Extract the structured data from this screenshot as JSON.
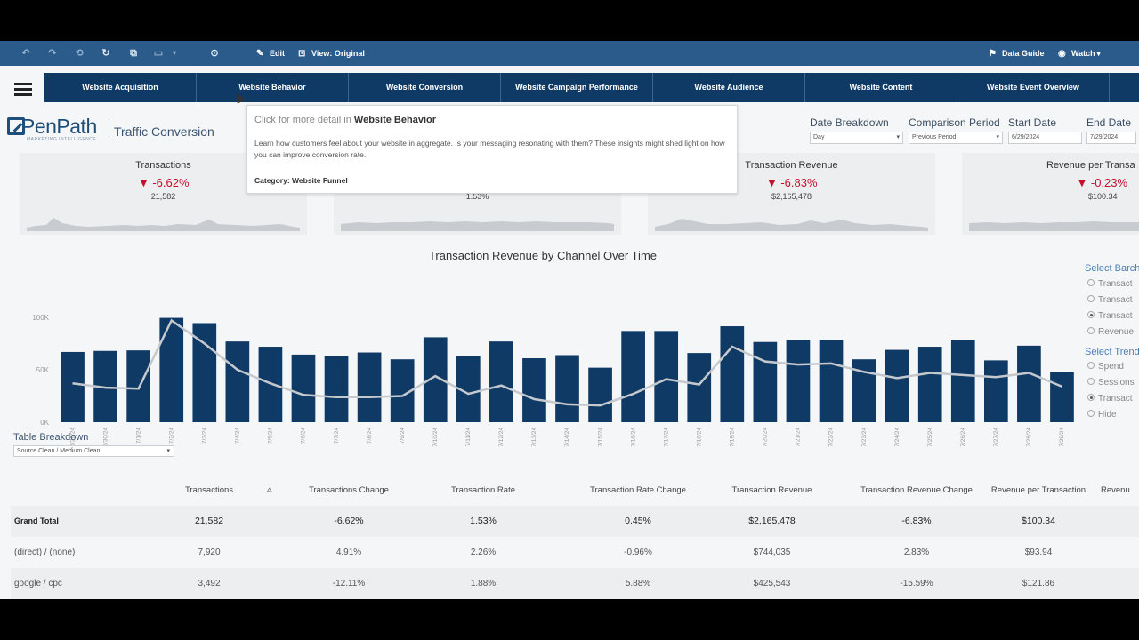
{
  "toolbar": {
    "edit_label": "Edit",
    "view_label": "View: Original",
    "data_guide_label": "Data Guide",
    "watch_label": "Watch"
  },
  "nav": {
    "tabs": [
      "Website Acquisition",
      "Website Behavior",
      "Website Conversion",
      "Website Campaign Performance",
      "Website Audience",
      "Website Content",
      "Website Event Overview"
    ]
  },
  "header": {
    "logo_name": "PenPath",
    "logo_tagline": "MARKETING INTELLIGENCE",
    "page_title": "Traffic Conversion"
  },
  "filters": [
    {
      "label": "Date Breakdown",
      "value": "Day"
    },
    {
      "label": "Comparison Period",
      "value": "Previous Period"
    },
    {
      "label": "Start Date",
      "value": "6/29/2024"
    },
    {
      "label": "End Date",
      "value": "7/29/2024"
    }
  ],
  "kpis": [
    {
      "title": "Transactions",
      "change": "-6.62%",
      "value": "21,582"
    },
    {
      "title": "",
      "change": "",
      "value": "1.53%"
    },
    {
      "title": "Transaction Revenue",
      "change": "-6.83%",
      "value": "$2,165,478"
    },
    {
      "title": "Revenue per Transa",
      "change": "-0.23%",
      "value": "$100.34"
    }
  ],
  "tooltip": {
    "prefix": "Click for more detail in",
    "target": "Website Behavior",
    "body": "Learn how customers feel about your website in aggregate. Is your messaging resonating with them? These insights might shed light on how you can improve conversion rate.",
    "category": "Category: Website Funnel"
  },
  "chart_data": {
    "type": "bar",
    "title": "Transaction Revenue by Channel Over Time",
    "xlabel": "",
    "ylabel": "",
    "ylim": [
      0,
      100000
    ],
    "yticks": [
      "100K",
      "50K",
      "0K"
    ],
    "categories": [
      "6/29/24",
      "6/30/24",
      "7/1/24",
      "7/2/24",
      "7/3/24",
      "7/4/24",
      "7/5/24",
      "7/6/24",
      "7/7/24",
      "7/8/24",
      "7/9/24",
      "7/10/24",
      "7/11/24",
      "7/12/24",
      "7/13/24",
      "7/14/24",
      "7/15/24",
      "7/16/24",
      "7/17/24",
      "7/18/24",
      "7/19/24",
      "7/20/24",
      "7/21/24",
      "7/22/24",
      "7/23/24",
      "7/24/24",
      "7/25/24",
      "7/26/24",
      "7/27/24",
      "7/28/24",
      "7/29/24"
    ],
    "series": [
      {
        "values": [
          67000,
          68000,
          68500,
          99500,
          94500,
          77000,
          72000,
          64500,
          63000,
          66500,
          60000,
          81000,
          63000,
          77000,
          61000,
          64000,
          52000,
          87000,
          87000,
          66000,
          91500,
          76500,
          78500,
          78500,
          60000,
          69000,
          72000,
          78000,
          59000,
          73000,
          47500
        ]
      },
      {
        "values": [
          37000,
          33000,
          32000,
          97000,
          75000,
          50000,
          37000,
          26000,
          24000,
          24000,
          25000,
          44000,
          27000,
          35000,
          22000,
          17000,
          16000,
          27000,
          41000,
          36000,
          72000,
          58000,
          55000,
          56000,
          48000,
          42000,
          47000,
          45000,
          43000,
          47000,
          34000
        ]
      }
    ],
    "colors": {
      "bars": "#0f3a65",
      "line": "#c5c9ce"
    }
  },
  "controls": {
    "bar_title": "Select Barch",
    "bar_options": [
      "Transact",
      "Transact",
      "Transact",
      "Revenue"
    ],
    "bar_selected": 2,
    "trend_title": "Select Trend",
    "trend_options": [
      "Spend",
      "Sessions",
      "Transact",
      "Hide"
    ],
    "trend_selected": 2
  },
  "table_breakdown": {
    "label": "Table Breakdown",
    "value": "Source Clean / Medium Clean"
  },
  "table": {
    "columns": [
      "",
      "Transactions",
      "Transactions Change",
      "Transaction Rate",
      "Transaction Rate Change",
      "Transaction Revenue",
      "Transaction Revenue Change",
      "Revenue per Transaction",
      "Revenu"
    ],
    "rows": [
      [
        "Grand Total",
        "21,582",
        "-6.62%",
        "1.53%",
        "0.45%",
        "$2,165,478",
        "-6.83%",
        "$100.34",
        ""
      ],
      [
        "(direct) / (none)",
        "7,920",
        "4.91%",
        "2.26%",
        "-0.96%",
        "$744,035",
        "2.83%",
        "$93.94",
        ""
      ],
      [
        "google / cpc",
        "3,492",
        "-12.11%",
        "1.88%",
        "5.88%",
        "$425,543",
        "-15.59%",
        "$121.86",
        ""
      ]
    ]
  }
}
